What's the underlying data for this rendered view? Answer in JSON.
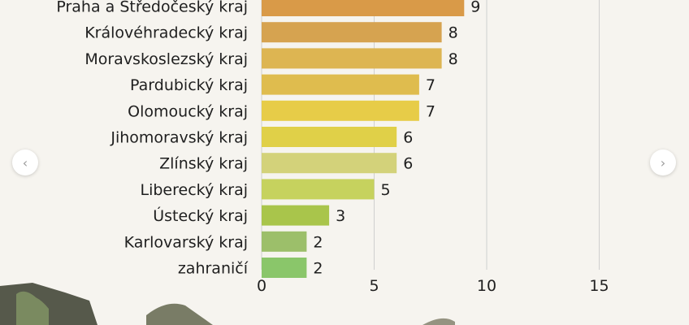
{
  "chart_data": {
    "type": "bar",
    "orientation": "horizontal",
    "categories": [
      "Praha a Středočeský kraj",
      "Královéhradecký kraj",
      "Moravskoslezský kraj",
      "Pardubický kraj",
      "Olomoucký kraj",
      "Jihomoravský kraj",
      "Zlínský kraj",
      "Liberecký kraj",
      "Ústecký kraj",
      "Karlovarský kraj",
      "zahraničí"
    ],
    "values": [
      9,
      8,
      8,
      7,
      7,
      6,
      6,
      5,
      3,
      2,
      2
    ],
    "bar_colors": [
      "#d99a48",
      "#d6a350",
      "#ddb552",
      "#dfbc4e",
      "#e7cc48",
      "#e0d048",
      "#d3d27a",
      "#c6d25e",
      "#a9c54b",
      "#9cbf6a",
      "#8ac66a"
    ],
    "xlim": [
      0,
      18
    ],
    "xticks": [
      0,
      5,
      10,
      15
    ],
    "xtick_labels": [
      "0",
      "5",
      "10",
      "15"
    ],
    "grid": true
  },
  "nav": {
    "prev_icon": "chevron-left-icon",
    "next_icon": "chevron-right-icon",
    "prev_glyph": "‹",
    "next_glyph": "›"
  }
}
